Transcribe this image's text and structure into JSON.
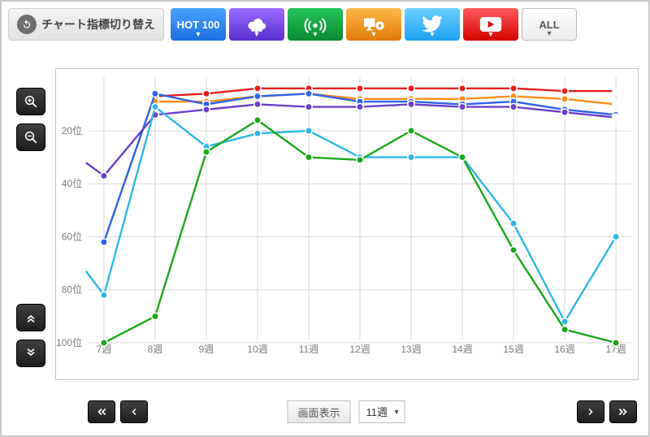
{
  "toolbar": {
    "switch_label": "チャート指標切り替え",
    "tabs": [
      {
        "id": "hot100",
        "label": "HOT 100",
        "bg1": "#4aa3ff",
        "bg2": "#1b6fe0"
      },
      {
        "id": "download",
        "label": "download",
        "bg1": "#9a6bff",
        "bg2": "#5a2fd1"
      },
      {
        "id": "radio",
        "label": "radio",
        "bg1": "#25c35a",
        "bg2": "#098a33"
      },
      {
        "id": "lookup",
        "label": "lookup",
        "bg1": "#ffb84a",
        "bg2": "#e27a0a"
      },
      {
        "id": "twitter",
        "label": "twitter",
        "bg1": "#6cd0ff",
        "bg2": "#1da1f2"
      },
      {
        "id": "youtube",
        "label": "youtube",
        "bg1": "#ff5a5a",
        "bg2": "#d20000"
      },
      {
        "id": "all",
        "label": "ALL"
      }
    ]
  },
  "bottom": {
    "view_label": "画面表示",
    "weeks_selected": "11週"
  },
  "chart": {
    "type": "line",
    "ylim": [
      100,
      1
    ],
    "x_categories": [
      "7週",
      "8週",
      "9週",
      "10週",
      "11週",
      "12週",
      "13週",
      "14週",
      "15週",
      "16週",
      "17週"
    ],
    "y_ticks": [
      20,
      40,
      60,
      80,
      100
    ],
    "y_tick_suffix": "位",
    "grid_color": "#d9d9d9",
    "axis_text_color": "#7a7a7a",
    "background_color": "#ffffff",
    "series": [
      {
        "name": "red",
        "color": "#e91e1e",
        "data": [
          null,
          7,
          6,
          4,
          4,
          4,
          4,
          4,
          4,
          5,
          5
        ]
      },
      {
        "name": "orange",
        "color": "#ff8c1a",
        "data": [
          null,
          9,
          9,
          7,
          6,
          8,
          8,
          8,
          7,
          8,
          10
        ]
      },
      {
        "name": "blue",
        "color": "#2e63e6",
        "data": [
          62,
          6,
          10,
          7,
          6,
          9,
          9,
          10,
          9,
          12,
          14
        ]
      },
      {
        "name": "purple",
        "color": "#6b3fc9",
        "data": [
          37,
          14,
          12,
          10,
          11,
          11,
          10,
          11,
          11,
          13,
          15
        ],
        "initial": 32
      },
      {
        "name": "sky",
        "color": "#2eb7e6",
        "data": [
          82,
          11,
          26,
          21,
          20,
          30,
          30,
          30,
          55,
          92,
          60
        ],
        "initial": 73
      },
      {
        "name": "green",
        "color": "#1aa81a",
        "data": [
          100,
          90,
          28,
          16,
          30,
          31,
          20,
          30,
          65,
          95,
          100
        ]
      }
    ],
    "last_hollow_series": [
      "red",
      "orange",
      "purple"
    ]
  }
}
